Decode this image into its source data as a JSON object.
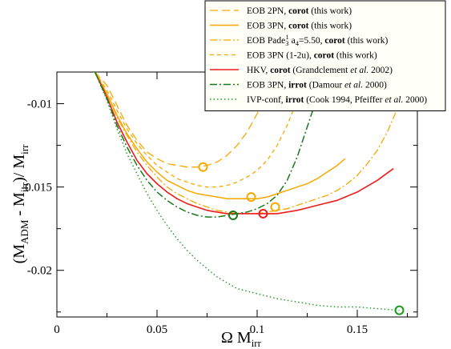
{
  "chart_data": {
    "type": "line",
    "xlabel": "Ω M",
    "xlabel_sub": "irr",
    "ylabel_parts": {
      "open": "(M",
      "sub1": "ADM",
      "mid": " - M",
      "sub2": "irr",
      "close": ")/ M",
      "sub3": "irr"
    },
    "xlim": [
      0,
      0.18
    ],
    "ylim": [
      -0.0228,
      -0.0081
    ],
    "x_ticks": [
      0,
      0.05,
      0.1,
      0.15
    ],
    "x_tick_labels": [
      "0",
      "0.05",
      "0.1",
      "0.15"
    ],
    "y_ticks": [
      -0.01,
      -0.015,
      -0.02
    ],
    "y_tick_labels": [
      "-0.01",
      "-0.015",
      "-0.02"
    ],
    "grid": false,
    "legend_position": "top-right",
    "series": [
      {
        "legend": {
          "pre": "EOB 2PN, ",
          "bold": "corot",
          "post": "  (this work)"
        },
        "color": "#f7a800",
        "dash": "10,5",
        "width": 1.3,
        "x": [
          0.019,
          0.025,
          0.03,
          0.035,
          0.04,
          0.045,
          0.05,
          0.055,
          0.06,
          0.065,
          0.07,
          0.075,
          0.08,
          0.085,
          0.09,
          0.095,
          0.1,
          0.105,
          0.11
        ],
        "y": [
          -0.0081,
          -0.0089,
          -0.0101,
          -0.0113,
          -0.0122,
          -0.0129,
          -0.0133,
          -0.0136,
          -0.0137,
          -0.0138,
          -0.0138,
          -0.0137,
          -0.0135,
          -0.0131,
          -0.0125,
          -0.0117,
          -0.0106,
          -0.0093,
          -0.0081
        ],
        "marker": {
          "x": 0.073,
          "y": -0.0138
        }
      },
      {
        "legend": {
          "pre": "EOB 3PN, ",
          "bold": "corot",
          "post": "  (this work)"
        },
        "color": "#f7a800",
        "dash": "",
        "width": 1.5,
        "x": [
          0.019,
          0.025,
          0.03,
          0.035,
          0.04,
          0.045,
          0.05,
          0.055,
          0.06,
          0.065,
          0.07,
          0.075,
          0.08,
          0.085,
          0.09,
          0.095,
          0.1,
          0.105,
          0.11,
          0.115,
          0.12,
          0.125,
          0.13,
          0.135,
          0.14,
          0.144
        ],
        "y": [
          -0.0081,
          -0.0094,
          -0.0107,
          -0.0118,
          -0.0127,
          -0.0135,
          -0.0141,
          -0.0146,
          -0.0149,
          -0.0152,
          -0.0154,
          -0.0155,
          -0.0156,
          -0.0157,
          -0.0157,
          -0.0157,
          -0.0157,
          -0.0156,
          -0.0154,
          -0.0152,
          -0.015,
          -0.0148,
          -0.0145,
          -0.0141,
          -0.0137,
          -0.0133
        ],
        "marker": {
          "x": 0.097,
          "y": -0.0156
        }
      },
      {
        "legend": {
          "pre": "EOB Pade",
          "sup_sub": {
            "sub": "3",
            "sup": "1"
          },
          "mid": "  a",
          "sub2": "4",
          "mid2": "=5.50,  ",
          "bold": "corot",
          "post": "  (this work)"
        },
        "color": "#f7a800",
        "dash": "9,3,2,3",
        "width": 1.3,
        "x": [
          0.019,
          0.025,
          0.03,
          0.035,
          0.04,
          0.045,
          0.05,
          0.055,
          0.06,
          0.065,
          0.07,
          0.075,
          0.08,
          0.085,
          0.09,
          0.095,
          0.1,
          0.105,
          0.11,
          0.115,
          0.12,
          0.125,
          0.13,
          0.135,
          0.14,
          0.145,
          0.15,
          0.155,
          0.16,
          0.165,
          0.17,
          0.172
        ],
        "y": [
          -0.0081,
          -0.0094,
          -0.0108,
          -0.0119,
          -0.0129,
          -0.0137,
          -0.0144,
          -0.015,
          -0.0154,
          -0.0157,
          -0.016,
          -0.0162,
          -0.0164,
          -0.0165,
          -0.0166,
          -0.0166,
          -0.0166,
          -0.0165,
          -0.0164,
          -0.0163,
          -0.0161,
          -0.0159,
          -0.0157,
          -0.0155,
          -0.0152,
          -0.0148,
          -0.0143,
          -0.0136,
          -0.0128,
          -0.0117,
          -0.0103,
          -0.0097
        ],
        "marker": {
          "x": 0.109,
          "y": -0.0162
        }
      },
      {
        "legend": {
          "pre": "EOB 3PN  (1-2u),  ",
          "bold": "corot",
          "post": "  (this work)"
        },
        "color": "#f7a800",
        "dash": "5,4",
        "width": 1.3,
        "x": [
          0.019,
          0.025,
          0.03,
          0.035,
          0.04,
          0.045,
          0.05,
          0.055,
          0.06,
          0.065,
          0.07,
          0.075,
          0.08,
          0.085,
          0.09,
          0.095,
          0.1,
          0.105,
          0.11,
          0.115,
          0.12,
          0.125
        ],
        "y": [
          -0.0081,
          -0.0092,
          -0.0104,
          -0.0115,
          -0.0124,
          -0.0131,
          -0.0137,
          -0.0141,
          -0.0145,
          -0.0147,
          -0.0149,
          -0.015,
          -0.015,
          -0.0149,
          -0.0147,
          -0.0144,
          -0.014,
          -0.0134,
          -0.0125,
          -0.0113,
          -0.0098,
          -0.0081
        ]
      },
      {
        "legend": {
          "pre": "HKV, ",
          "bold": "corot",
          "post": " (Grandclement ",
          "ital": "et al.",
          "post2": " 2002)"
        },
        "color": "#ee1c1c",
        "dash": "",
        "width": 1.6,
        "x": [
          0.019,
          0.025,
          0.03,
          0.035,
          0.04,
          0.045,
          0.05,
          0.055,
          0.06,
          0.065,
          0.07,
          0.075,
          0.08,
          0.085,
          0.09,
          0.095,
          0.1,
          0.11,
          0.12,
          0.13,
          0.14,
          0.15,
          0.16,
          0.168
        ],
        "y": [
          -0.0081,
          -0.0096,
          -0.0111,
          -0.0123,
          -0.0134,
          -0.0142,
          -0.0148,
          -0.0153,
          -0.0157,
          -0.016,
          -0.0162,
          -0.0164,
          -0.0165,
          -0.0166,
          -0.0166,
          -0.0166,
          -0.0166,
          -0.0166,
          -0.0164,
          -0.0161,
          -0.0158,
          -0.0153,
          -0.0146,
          -0.0139
        ],
        "marker": {
          "x": 0.103,
          "y": -0.0166
        }
      },
      {
        "legend": {
          "pre": "EOB 3PN, ",
          "bold": "irrot",
          "post": "  (Damour ",
          "ital": "et al.",
          "post2": " 2000)"
        },
        "color": "#1a7a1a",
        "dash": "9,3,2,3",
        "width": 1.5,
        "x": [
          0.019,
          0.025,
          0.03,
          0.035,
          0.04,
          0.045,
          0.05,
          0.055,
          0.06,
          0.065,
          0.07,
          0.075,
          0.08,
          0.085,
          0.09,
          0.095,
          0.1,
          0.105,
          0.11,
          0.115,
          0.12,
          0.125,
          0.13,
          0.135
        ],
        "y": [
          -0.0081,
          -0.0097,
          -0.0113,
          -0.0126,
          -0.0137,
          -0.0146,
          -0.0153,
          -0.0158,
          -0.0162,
          -0.0165,
          -0.0167,
          -0.0168,
          -0.0168,
          -0.0167,
          -0.0166,
          -0.0165,
          -0.0163,
          -0.016,
          -0.0155,
          -0.0146,
          -0.0132,
          -0.0114,
          -0.0096,
          -0.0081
        ],
        "marker": {
          "x": 0.088,
          "y": -0.0167
        }
      },
      {
        "legend": {
          "pre": "IVP-conf, ",
          "bold": "irrot",
          "post": "  (Cook 1994, Pfeiffer ",
          "ital": "et al.",
          "post2": " 2000)"
        },
        "color": "#1a9a1a",
        "dash": "1.5,3",
        "width": 1.4,
        "x": [
          0.019,
          0.025,
          0.03,
          0.035,
          0.04,
          0.045,
          0.05,
          0.055,
          0.06,
          0.065,
          0.07,
          0.075,
          0.08,
          0.09,
          0.1,
          0.11,
          0.12,
          0.13,
          0.14,
          0.15,
          0.16,
          0.171
        ],
        "y": [
          -0.0081,
          -0.0098,
          -0.0115,
          -0.013,
          -0.0142,
          -0.0154,
          -0.0164,
          -0.0173,
          -0.0181,
          -0.0188,
          -0.0194,
          -0.0199,
          -0.0204,
          -0.0211,
          -0.0214,
          -0.0217,
          -0.0219,
          -0.0221,
          -0.0222,
          -0.0222,
          -0.0223,
          -0.0224
        ],
        "marker": {
          "x": 0.171,
          "y": -0.0224
        }
      }
    ]
  }
}
